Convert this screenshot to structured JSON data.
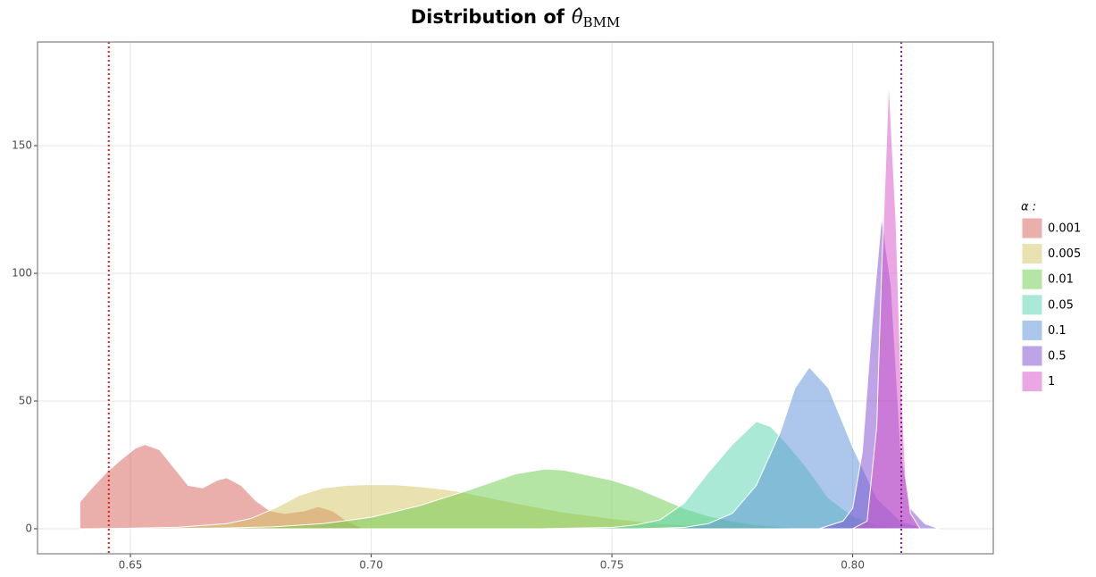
{
  "chart_data": {
    "type": "density",
    "title": "Distribution of",
    "title_symbol": "θ̂",
    "title_subscript": "BMM",
    "legend_title": "α :",
    "legend": "right",
    "grid": true,
    "xlim": [
      0.6307,
      0.8292
    ],
    "ylim": [
      -9.8,
      190.6
    ],
    "xticks": [
      0.65,
      {
        "value": 0.7,
        "label": "0.70"
      },
      0.75,
      {
        "value": 0.8,
        "label": "0.80"
      }
    ],
    "yticks": [
      0,
      50,
      100,
      150
    ],
    "vlines": [
      {
        "x": 0.6455,
        "color": "#e41a1c"
      },
      {
        "x": 0.8101,
        "color": "#8b1a8b"
      }
    ],
    "series": [
      {
        "name": "0.001",
        "color": "#d65f58",
        "x": [
          0.6395,
          0.642,
          0.645,
          0.648,
          0.651,
          0.653,
          0.656,
          0.659,
          0.662,
          0.665,
          0.668,
          0.67,
          0.673,
          0.676,
          0.679,
          0.682,
          0.686,
          0.689,
          0.692,
          0.695,
          0.698
        ],
        "values": [
          10.5,
          16,
          22,
          27,
          31.5,
          33,
          31,
          24,
          17,
          16,
          19,
          20,
          17,
          11,
          7,
          6,
          7,
          8.7,
          7,
          3,
          0.5
        ]
      },
      {
        "name": "0.005",
        "color": "#d4c460",
        "x": [
          0.64,
          0.65,
          0.66,
          0.67,
          0.675,
          0.68,
          0.685,
          0.69,
          0.695,
          0.7,
          0.705,
          0.71,
          0.715,
          0.72,
          0.725,
          0.73,
          0.74,
          0.75,
          0.76,
          0.77,
          0.78,
          0.79
        ],
        "values": [
          0,
          0.2,
          0.6,
          2,
          4,
          8,
          13,
          16,
          17,
          17.3,
          17.2,
          16.5,
          15.5,
          14,
          12,
          10,
          6.5,
          4,
          2,
          1,
          0.3,
          0
        ]
      },
      {
        "name": "0.01",
        "color": "#6acc4a",
        "x": [
          0.655,
          0.67,
          0.68,
          0.69,
          0.7,
          0.71,
          0.72,
          0.73,
          0.736,
          0.74,
          0.75,
          0.755,
          0.76,
          0.765,
          0.77,
          0.775,
          0.78,
          0.79
        ],
        "values": [
          0,
          0.3,
          0.8,
          2,
          4.5,
          9,
          15,
          21.5,
          23.4,
          23,
          19,
          16,
          12,
          8,
          5,
          3,
          1.5,
          0
        ]
      },
      {
        "name": "0.05",
        "color": "#55d4ac",
        "x": [
          0.735,
          0.75,
          0.755,
          0.76,
          0.765,
          0.77,
          0.775,
          0.78,
          0.783,
          0.786,
          0.79,
          0.795,
          0.8,
          0.805,
          0.81
        ],
        "values": [
          0,
          0.5,
          1.5,
          3.5,
          10,
          22,
          33,
          42,
          40,
          34,
          25,
          12,
          5,
          1.5,
          0
        ]
      },
      {
        "name": "0.1",
        "color": "#5a90d8",
        "x": [
          0.755,
          0.765,
          0.77,
          0.775,
          0.78,
          0.785,
          0.788,
          0.791,
          0.795,
          0.8,
          0.805,
          0.81,
          0.815
        ],
        "values": [
          0,
          0.5,
          2,
          6,
          17,
          38,
          55,
          63.3,
          55,
          32,
          12,
          3,
          0
        ]
      },
      {
        "name": "0.5",
        "color": "#7a4ad0",
        "x": [
          0.793,
          0.798,
          0.8,
          0.802,
          0.804,
          0.806,
          0.808,
          0.81,
          0.812,
          0.815,
          0.818
        ],
        "values": [
          0,
          3,
          8,
          30,
          80,
          122,
          95,
          30,
          8,
          2,
          0
        ]
      },
      {
        "name": "1",
        "color": "#d850c8",
        "x": [
          0.8,
          0.803,
          0.805,
          0.806,
          0.8075,
          0.809,
          0.81,
          0.811,
          0.812,
          0.814
        ],
        "values": [
          0,
          3,
          40,
          100,
          176,
          120,
          60,
          20,
          6,
          0
        ]
      }
    ]
  }
}
